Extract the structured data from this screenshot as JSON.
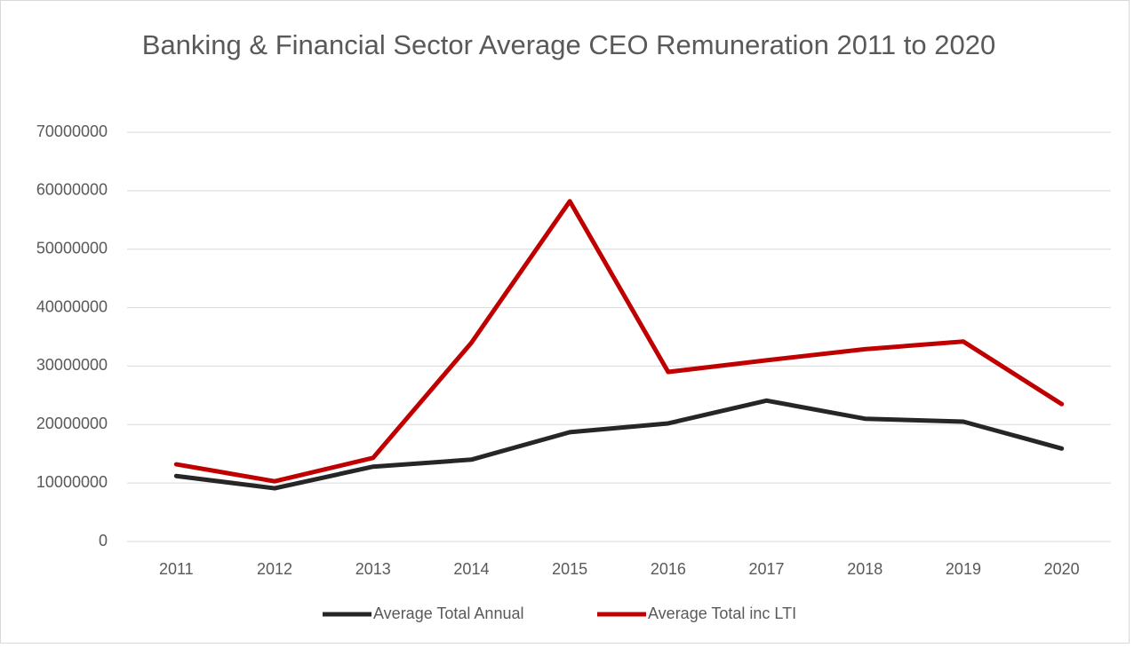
{
  "chart_data": {
    "type": "line",
    "title": "Banking & Financial Sector Average CEO Remuneration 2011 to 2020",
    "categories": [
      "2011",
      "2012",
      "2013",
      "2014",
      "2015",
      "2016",
      "2017",
      "2018",
      "2019",
      "2020"
    ],
    "series": [
      {
        "name": "Average Total Annual",
        "color": "#262626",
        "values": [
          11200000,
          9100000,
          12800000,
          14000000,
          18700000,
          20200000,
          24100000,
          21000000,
          20500000,
          15900000
        ]
      },
      {
        "name": "Average Total inc LTI",
        "color": "#c00000",
        "values": [
          13200000,
          10300000,
          14300000,
          34000000,
          58200000,
          29000000,
          31000000,
          32900000,
          34200000,
          23500000
        ]
      }
    ],
    "ylim": [
      0,
      70000000
    ],
    "yticks": [
      0,
      10000000,
      20000000,
      30000000,
      40000000,
      50000000,
      60000000,
      70000000
    ],
    "grid": true,
    "legend": "bottom"
  }
}
